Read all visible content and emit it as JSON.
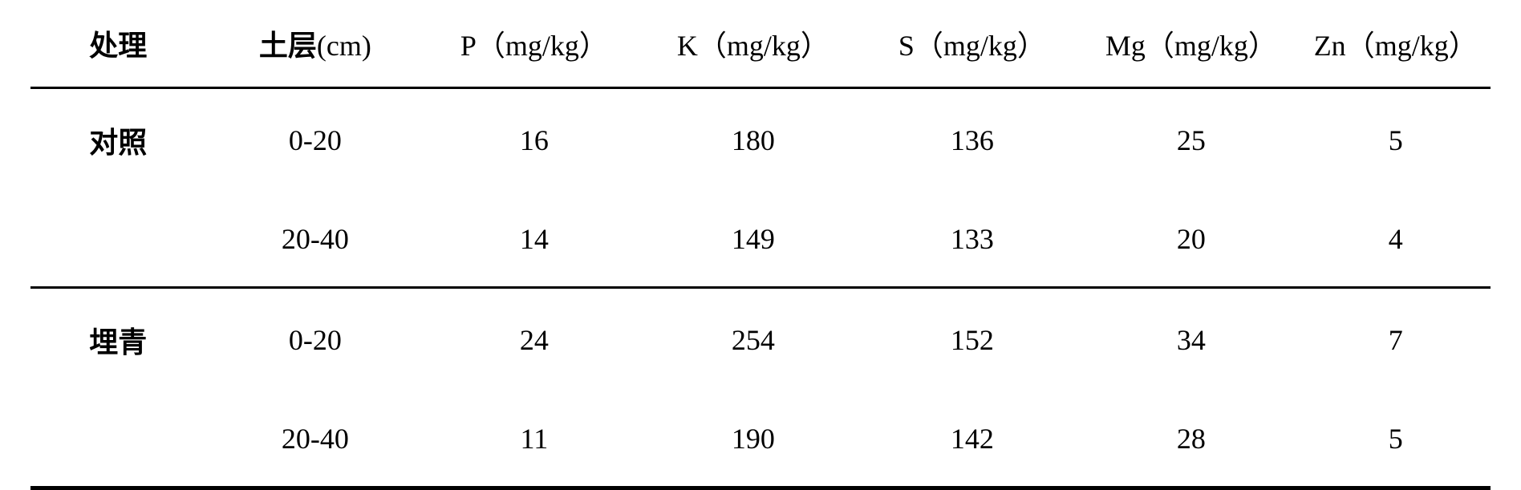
{
  "table": {
    "columns": [
      {
        "label": "处理",
        "unit": ""
      },
      {
        "label": "土层",
        "unit": "(cm)"
      },
      {
        "label": "P",
        "unit": "（mg/kg）"
      },
      {
        "label": "K",
        "unit": "（mg/kg）"
      },
      {
        "label": "S",
        "unit": "（mg/kg）"
      },
      {
        "label": "Mg",
        "unit": "（mg/kg）"
      },
      {
        "label": "Zn",
        "unit": "（mg/kg）"
      }
    ],
    "groups": [
      {
        "treatment": "对照",
        "rows": [
          {
            "layer": "0-20",
            "P": "16",
            "K": "180",
            "S": "136",
            "Mg": "25",
            "Zn": "5"
          },
          {
            "layer": "20-40",
            "P": "14",
            "K": "149",
            "S": "133",
            "Mg": "20",
            "Zn": "4"
          }
        ]
      },
      {
        "treatment": "埋青",
        "rows": [
          {
            "layer": "0-20",
            "P": "24",
            "K": "254",
            "S": "152",
            "Mg": "34",
            "Zn": "7"
          },
          {
            "layer": "20-40",
            "P": "11",
            "K": "190",
            "S": "142",
            "Mg": "28",
            "Zn": "5"
          }
        ]
      }
    ],
    "styling": {
      "font_size": 36,
      "border_thick": 5,
      "border_thin": 3,
      "text_color": "#000000",
      "background_color": "#ffffff",
      "row_padding_v": 38,
      "header_padding_v": 28
    }
  }
}
